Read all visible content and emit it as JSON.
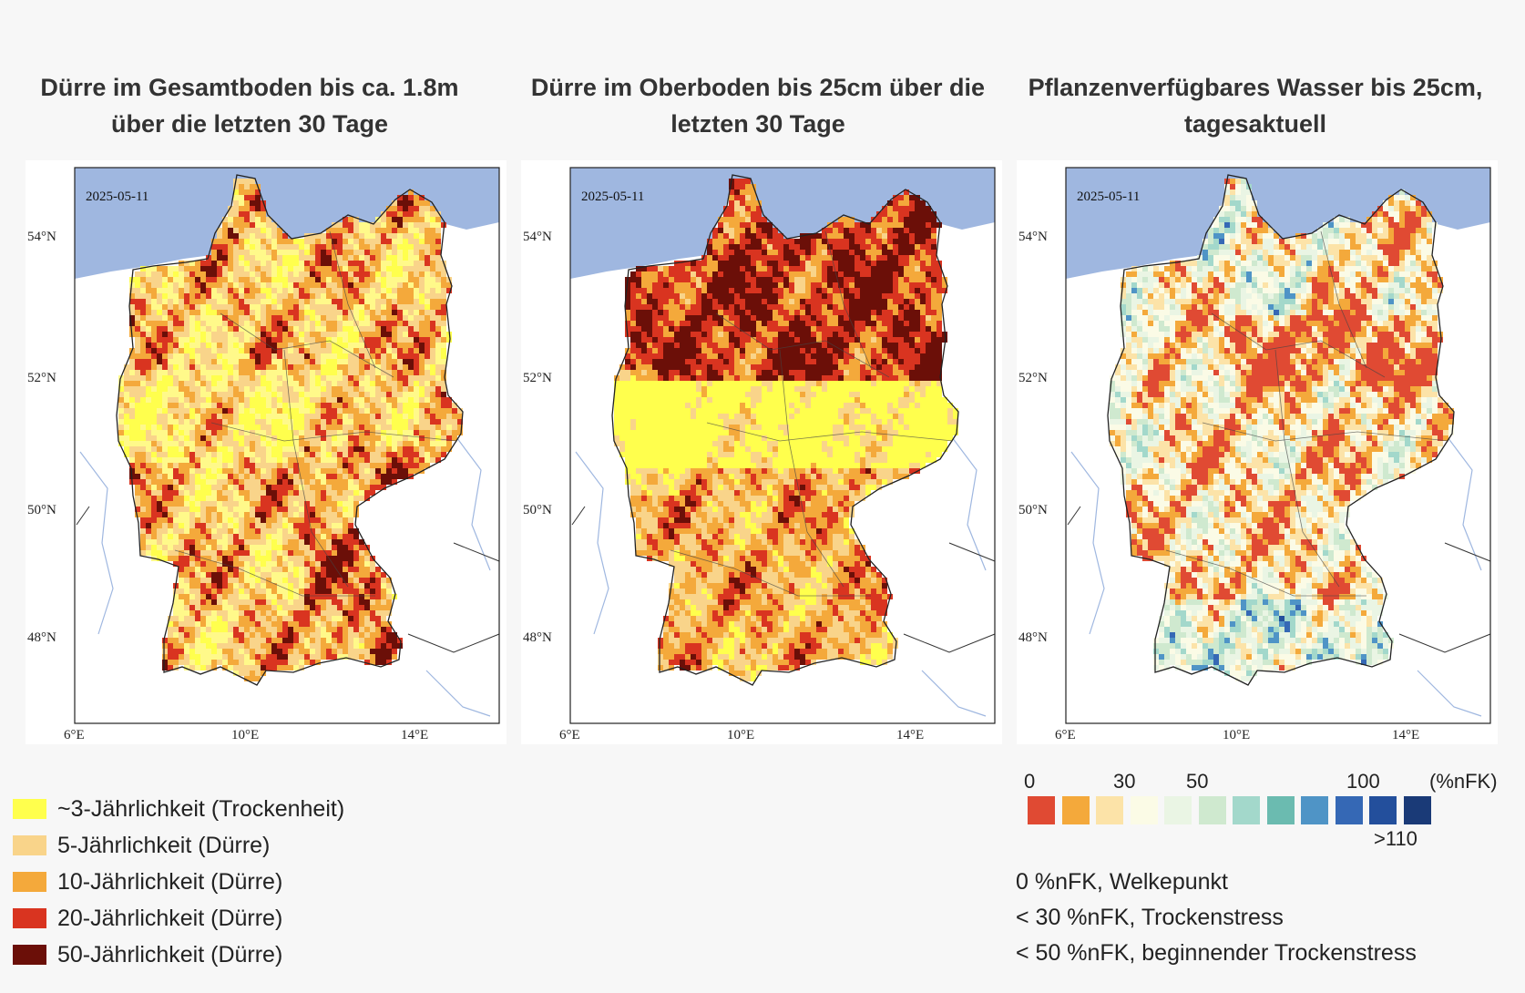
{
  "panels": [
    {
      "title_line1": "Dürre im Gesamtboden bis ca. 1.8m",
      "title_line2": "über die letzten 30 Tage",
      "date": "2025-05-11",
      "palette": "drought_total"
    },
    {
      "title_line1": "Dürre im Oberboden bis 25cm über die",
      "title_line2": "letzten 30 Tage",
      "date": "2025-05-11",
      "palette": "drought_top"
    },
    {
      "title_line1": "Pflanzenverfügbares Wasser bis 25cm,",
      "title_line2": "tagesaktuell",
      "date": "2025-05-11",
      "palette": "nfk"
    }
  ],
  "axes": {
    "lat_ticks": [
      "54°N",
      "52°N",
      "50°N",
      "48°N"
    ],
    "lon_ticks": [
      "6°E",
      "10°E",
      "14°E"
    ]
  },
  "drought_legend": [
    {
      "label": "~3-Jährlichkeit (Trockenheit)",
      "color": "#ffff4d"
    },
    {
      "label": "5-Jährlichkeit (Dürre)",
      "color": "#f9d48a"
    },
    {
      "label": "10-Jährlichkeit (Dürre)",
      "color": "#f4a93b"
    },
    {
      "label": "20-Jährlichkeit (Dürre)",
      "color": "#d93420"
    },
    {
      "label": "50-Jährlichkeit (Dürre)",
      "color": "#6b0f08"
    }
  ],
  "nfk_legend": {
    "labels": {
      "l0": "0",
      "l30": "30",
      "l50": "50",
      "l100": "100",
      "unit": "(%nFK)",
      "l110": ">110"
    },
    "colors": [
      "#e04a33",
      "#f4a93b",
      "#fce3a8",
      "#fbfbe6",
      "#eaf5e4",
      "#cfe9cf",
      "#a3d8cb",
      "#6bbbb0",
      "#4f94c6",
      "#3568b5",
      "#234f9c",
      "#1a3a77"
    ]
  },
  "notes": [
    "0 %nFK, Welkepunkt",
    "< 30 %nFK, Trockenstress",
    "< 50 %nFK, beginnender Trockenstress"
  ],
  "colors": {
    "sea": "#9fb7e0",
    "background": "#f7f7f7"
  }
}
